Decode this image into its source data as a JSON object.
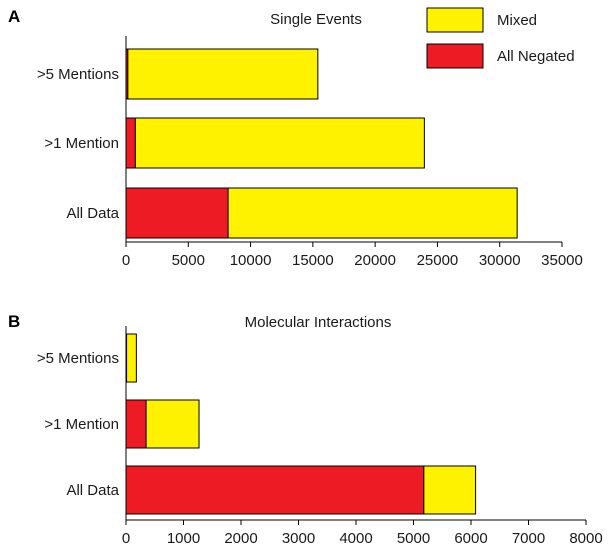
{
  "colors": {
    "mixed": "#FFF200",
    "negated": "#ED1C24",
    "outline": "#000000"
  },
  "legend": [
    {
      "label": "Mixed",
      "color": "#FFF200"
    },
    {
      "label": "All Negated",
      "color": "#ED1C24"
    }
  ],
  "chart_data": [
    {
      "panel": "A",
      "type": "bar",
      "orientation": "horizontal",
      "stacked": true,
      "title": "Single Events",
      "categories": [
        ">5 Mentions",
        ">1 Mention",
        "All Data"
      ],
      "series": [
        {
          "name": "All Negated",
          "values": [
            150,
            750,
            8200
          ]
        },
        {
          "name": "Mixed",
          "values": [
            15250,
            23200,
            23200
          ]
        }
      ],
      "xlim": [
        0,
        35000
      ],
      "xticks": [
        "0",
        "5000",
        "10000",
        "15000",
        "20000",
        "25000",
        "30000",
        "35000"
      ]
    },
    {
      "panel": "B",
      "type": "bar",
      "orientation": "horizontal",
      "stacked": true,
      "title": "Molecular Interactions",
      "categories": [
        ">5 Mentions",
        ">1 Mention",
        "All Data"
      ],
      "series": [
        {
          "name": "All Negated",
          "values": [
            10,
            350,
            5180
          ]
        },
        {
          "name": "Mixed",
          "values": [
            170,
            920,
            900
          ]
        }
      ],
      "xlim": [
        0,
        8000
      ],
      "xticks": [
        "0",
        "1000",
        "2000",
        "3000",
        "4000",
        "5000",
        "6000",
        "7000",
        "8000"
      ]
    }
  ]
}
